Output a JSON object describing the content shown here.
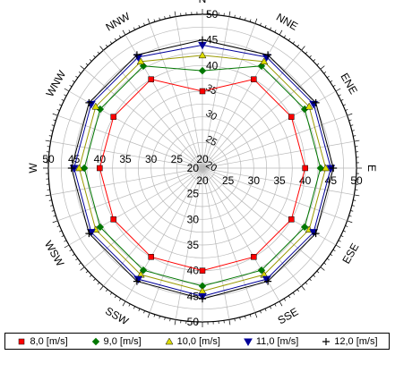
{
  "chart_data": {
    "type": "radar",
    "directions": [
      "N",
      "NNE",
      "ENE",
      "E",
      "ESE",
      "SSE",
      "S",
      "SSW",
      "WSW",
      "W",
      "WNW",
      "NNW"
    ],
    "direction_angles_deg": [
      0,
      30,
      60,
      90,
      120,
      150,
      180,
      210,
      240,
      270,
      300,
      330
    ],
    "radial_axis": {
      "min": 20,
      "max": 50,
      "ticks": [
        20,
        25,
        30,
        35,
        40,
        45,
        50
      ],
      "tick_labels_by_direction": {
        "N": [
          40,
          45,
          50
        ],
        "S": [
          20,
          25,
          30,
          35,
          40,
          45,
          50
        ],
        "E": [
          20,
          25,
          30,
          35,
          40,
          45,
          50
        ],
        "W": [
          20,
          25,
          30,
          35,
          40,
          45,
          50
        ]
      },
      "north_labels": [
        "20",
        "25",
        "30",
        "35"
      ]
    },
    "grid": true,
    "legend_position": "bottom",
    "series": [
      {
        "name": "8,0 [m/s]",
        "color": "#ff0000",
        "marker": "square",
        "values": [
          35,
          40,
          40,
          40,
          40,
          40,
          40,
          40,
          40,
          40,
          40,
          40
        ]
      },
      {
        "name": "9,0 [m/s]",
        "color": "#007700",
        "marker": "diamond",
        "values": [
          39,
          43,
          43,
          43,
          43,
          43,
          43,
          43,
          43,
          43,
          43,
          43
        ]
      },
      {
        "name": "10,0 [m/s]",
        "color": "#dddd00",
        "marker": "triangle-up",
        "values": [
          42,
          44,
          44,
          44,
          44,
          44,
          44,
          44,
          44,
          44,
          44,
          44
        ]
      },
      {
        "name": "11,0 [m/s]",
        "color": "#000099",
        "marker": "triangle-down",
        "values": [
          44,
          45,
          45,
          45,
          45,
          45,
          45,
          45,
          45,
          45,
          45,
          45
        ]
      },
      {
        "name": "12,0 [m/s]",
        "color": "#000000",
        "marker": "plus",
        "values": [
          45,
          45.5,
          45.5,
          45.5,
          45.5,
          45.5,
          45.5,
          45.5,
          45.5,
          45.5,
          45.5,
          45.5
        ]
      }
    ]
  }
}
